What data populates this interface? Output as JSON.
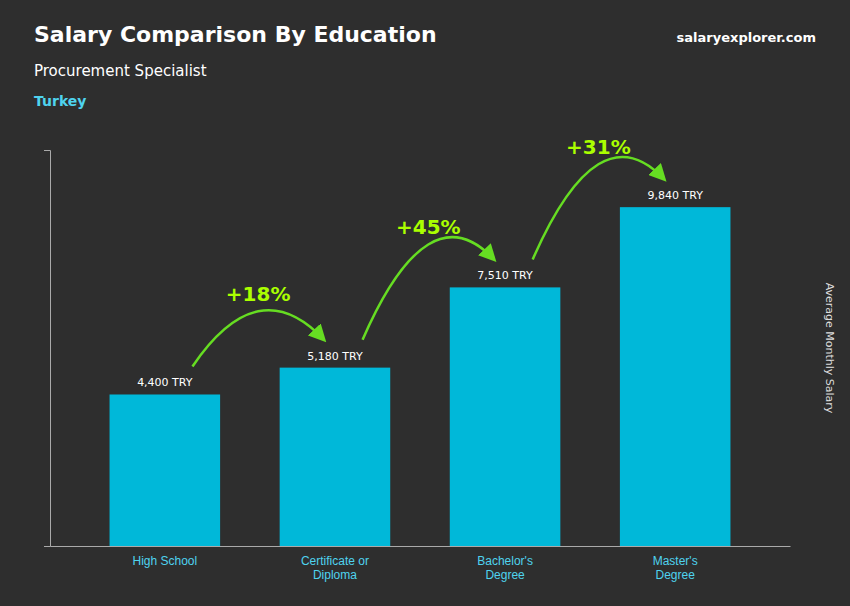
{
  "chart_data": {
    "type": "bar",
    "title": "Salary Comparison By Education",
    "subtitle": "Procurement Specialist",
    "country": "Turkey",
    "source": "salaryexplorer.com",
    "ylabel": "Average Monthly Salary",
    "categories": [
      "High School",
      "Certificate or\nDiploma",
      "Bachelor's\nDegree",
      "Master's\nDegree"
    ],
    "values": [
      4400,
      5180,
      7510,
      9840
    ],
    "value_labels": [
      "4,400 TRY",
      "5,180 TRY",
      "7,510 TRY",
      "9,840 TRY"
    ],
    "data_labels": true,
    "annotations": [
      "+18%",
      "+45%",
      "+31%"
    ],
    "color": "#00b8d9",
    "ylim": [
      0,
      11500
    ],
    "tick_labels": "x",
    "grid": false
  }
}
